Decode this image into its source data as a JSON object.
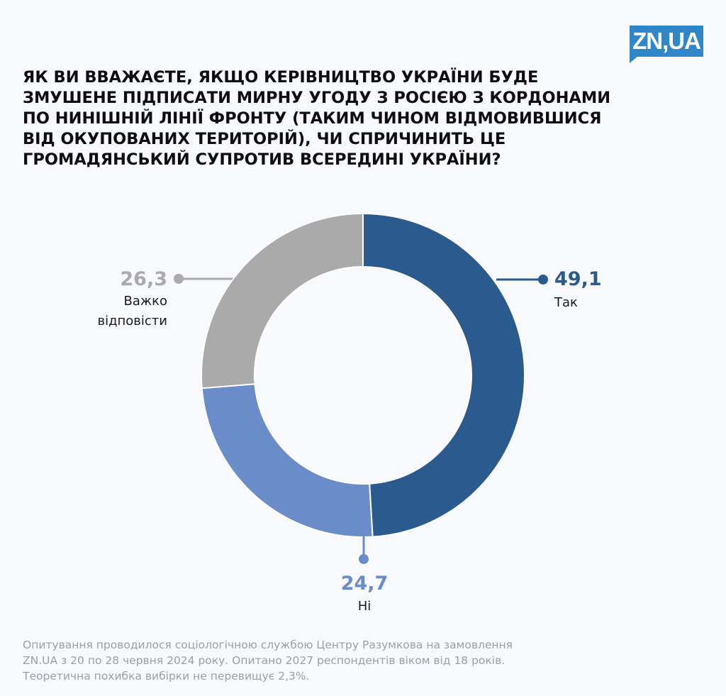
{
  "brand": {
    "logo_text": "ZN,UA",
    "logo_color": "#2f86c9"
  },
  "chart_data": {
    "type": "pie",
    "style": "donut",
    "title": "Як ви вважаєте, якщо керівництво України буде змушене підписати мирну угоду з Росією з кордонами по нинішній лінії фронту (таким чином відмовившися від окупованих територій), чи спричинить це громадянський супротив всередині України?",
    "title_lines": [
      "Як ви вважаєте, якщо керівництво України буде",
      "змушене підписати мирну угоду з Росією з кордонами",
      "по нинішній лінії фронту (таким чином відмовившися",
      "від окупованих територій), чи спричинить це",
      "громадянський супротив всередині України?"
    ],
    "unit": "%",
    "slices": [
      {
        "key": "yes",
        "label": "Так",
        "value": 49.1,
        "value_text": "49,1",
        "color": "#2b5a8e"
      },
      {
        "key": "no",
        "label": "Ні",
        "value": 24.7,
        "value_text": "24,7",
        "color": "#6a8cc8"
      },
      {
        "key": "hard",
        "label": "Важко відповісти",
        "label_lines": [
          "Важко",
          "відповісти"
        ],
        "value": 26.3,
        "value_text": "26,3",
        "color": "#aaaaaa"
      }
    ]
  },
  "footer": {
    "lines": [
      "Опитування проводилося  соціологічною службою Центру Разумкова на замовлення",
      "ZN.UA з 20 по 28 червня 2024 року. Опитано 2027 респондентів віком від 18 років.",
      "Теоретична похибка вибірки не перевищує 2,3%."
    ]
  }
}
